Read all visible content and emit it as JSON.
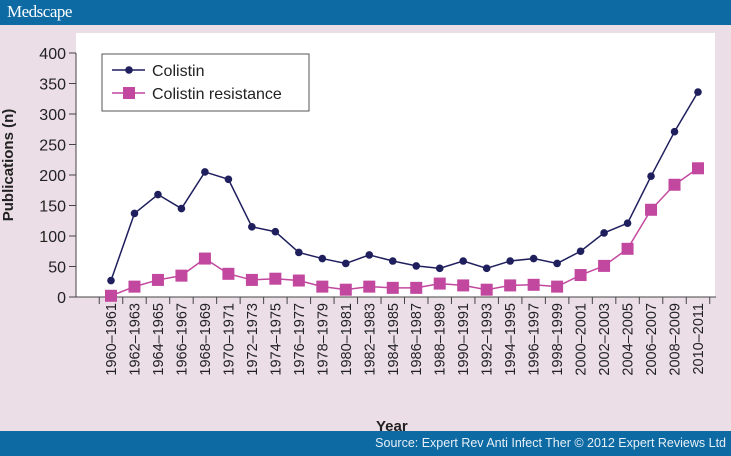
{
  "header": {
    "logo": "Medscape"
  },
  "footer": {
    "source": "Source: Expert Rev Anti Infect Ther © 2012 Expert Reviews Ltd"
  },
  "colors": {
    "header": "#0d6aa3",
    "colistin": "#1f1f5e",
    "resistance": "#c2479f",
    "background": "#ebdee6"
  },
  "chart_data": {
    "type": "line",
    "title": "",
    "xlabel": "Year",
    "ylabel": "Publications (n)",
    "ylim": [
      0,
      400
    ],
    "yticks": [
      0,
      50,
      100,
      150,
      200,
      250,
      300,
      350,
      400
    ],
    "grid": false,
    "legend": "top-left",
    "categories": [
      "1960–1961",
      "1962–1963",
      "1964–1965",
      "1966–1967",
      "1968–1969",
      "1970–1971",
      "1972–1973",
      "1974–1975",
      "1976–1977",
      "1978–1979",
      "1980–1981",
      "1982–1983",
      "1984–1985",
      "1986–1987",
      "1988–1989",
      "1990–1991",
      "1992–1993",
      "1994–1995",
      "1996–1997",
      "1998–1999",
      "2000–2001",
      "2002–2003",
      "2004–2005",
      "2006–2007",
      "2008–2009",
      "2010–2011"
    ],
    "series": [
      {
        "name": "Colistin",
        "marker": "circle",
        "values": [
          27,
          137,
          168,
          145,
          205,
          193,
          115,
          107,
          73,
          63,
          55,
          69,
          59,
          51,
          47,
          59,
          47,
          59,
          63,
          55,
          75,
          105,
          121,
          198,
          271,
          336
        ]
      },
      {
        "name": "Colistin resistance",
        "marker": "square",
        "values": [
          2,
          17,
          28,
          35,
          63,
          38,
          28,
          30,
          27,
          17,
          12,
          17,
          15,
          15,
          22,
          19,
          12,
          19,
          20,
          17,
          36,
          51,
          79,
          143,
          184,
          211
        ]
      }
    ]
  }
}
